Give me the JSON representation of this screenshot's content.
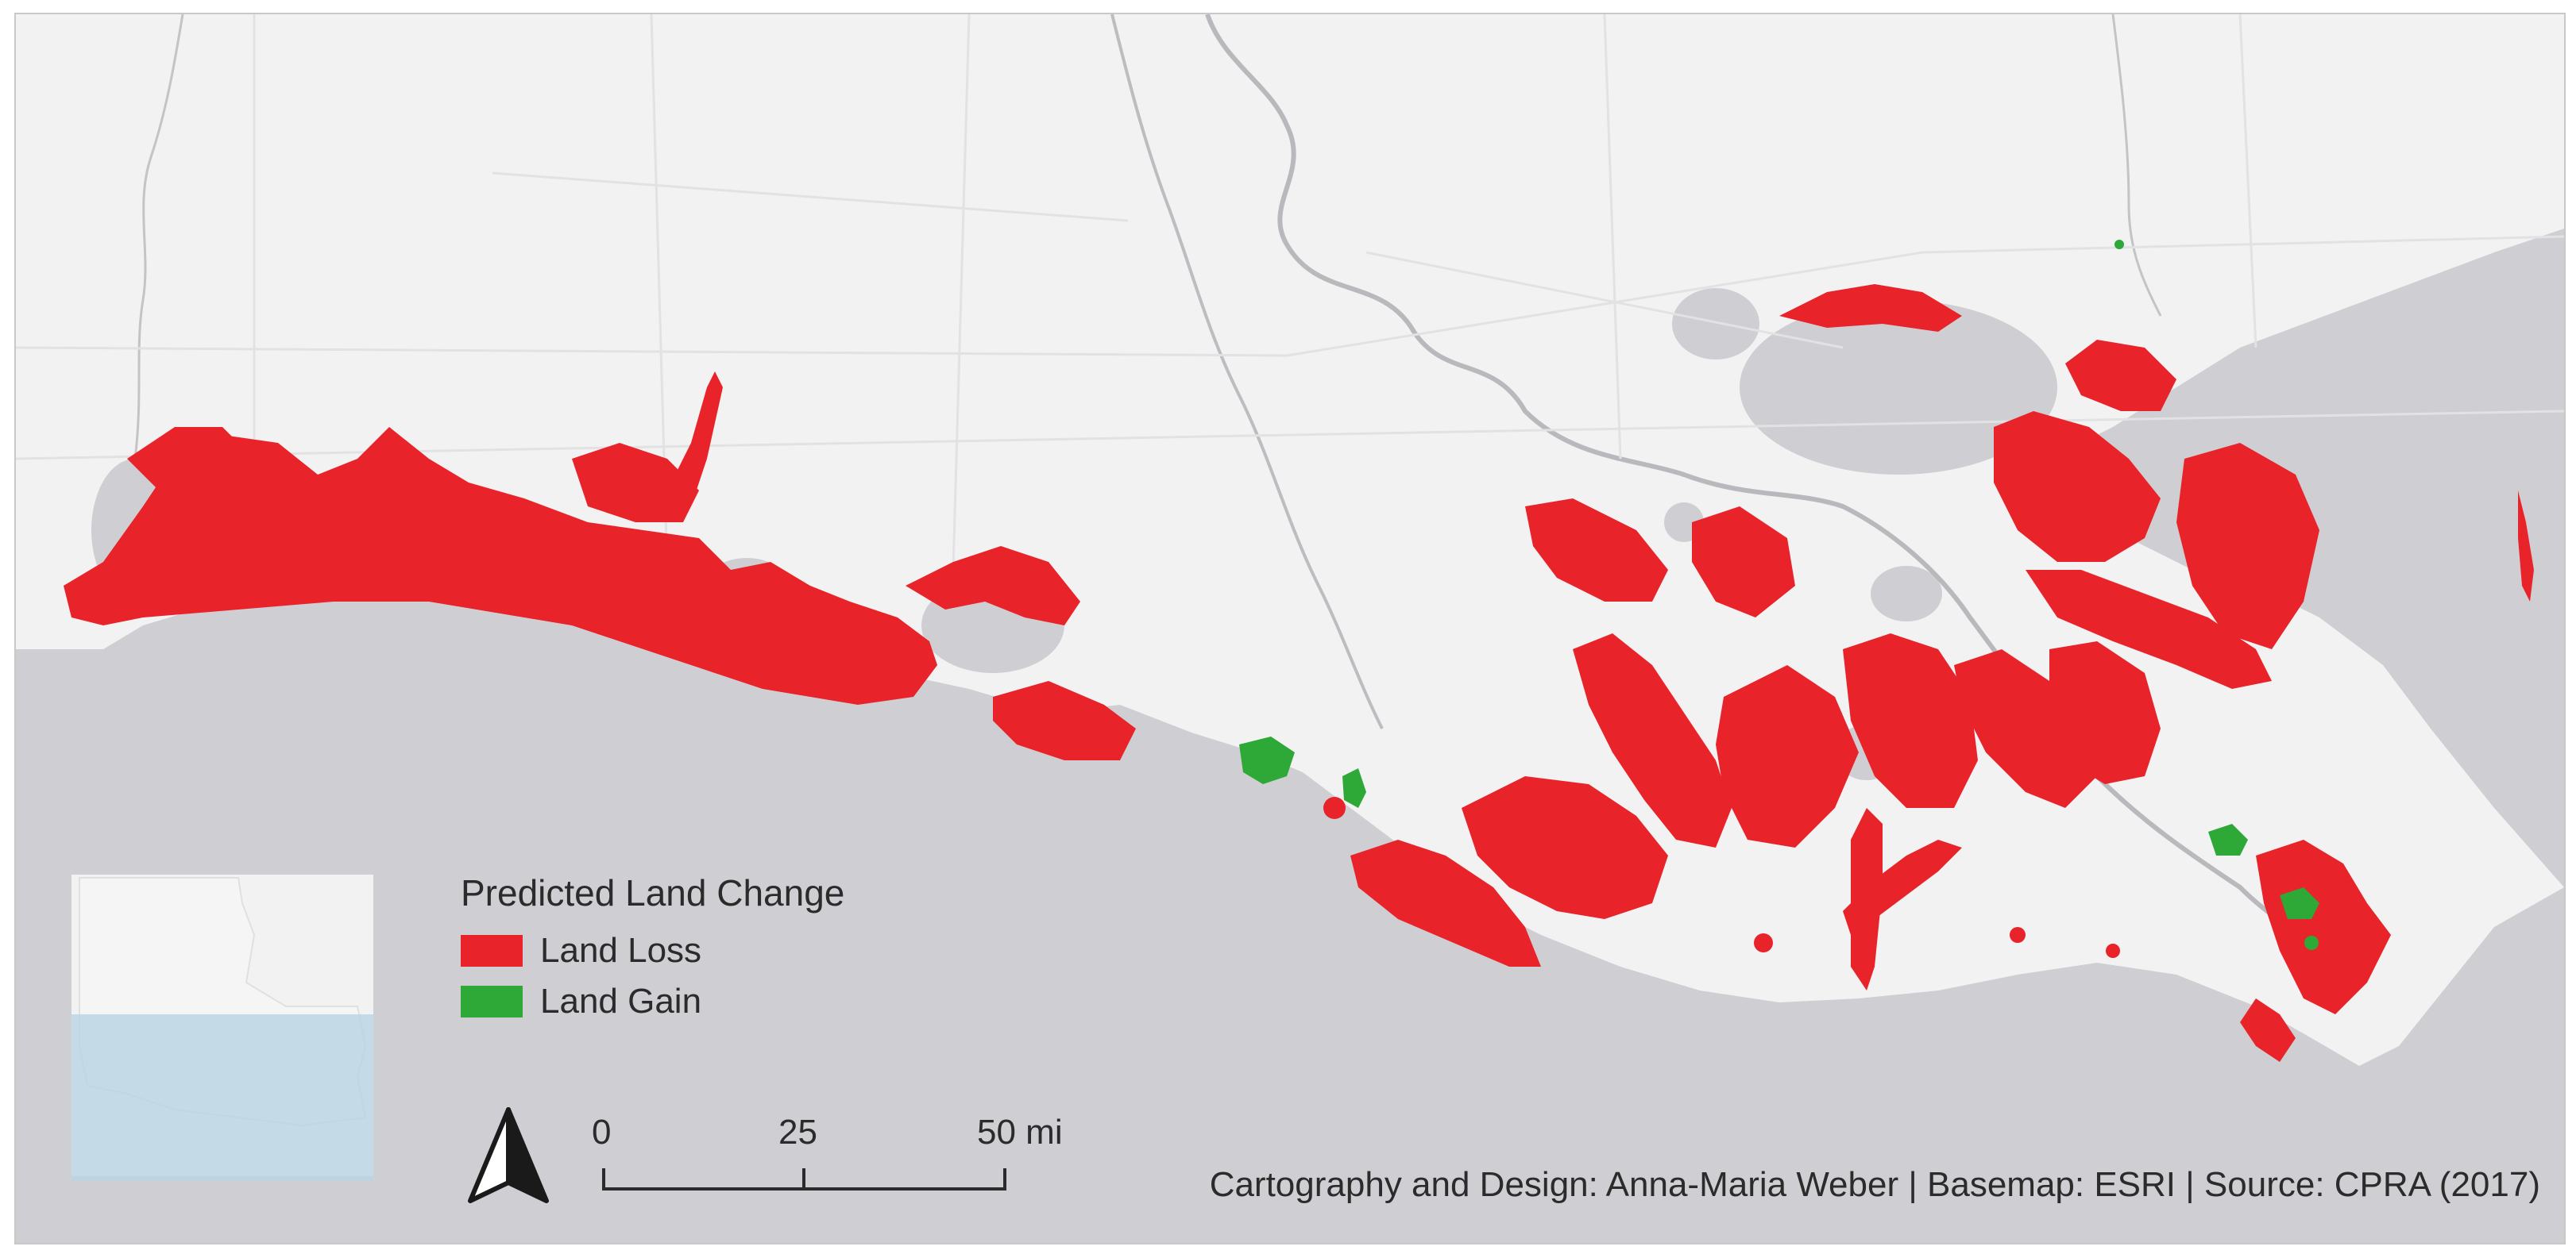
{
  "legend": {
    "title": "Predicted Land Change",
    "items": [
      {
        "label": "Land Loss",
        "color": "#e8232a"
      },
      {
        "label": "Land Gain",
        "color": "#2ea836"
      }
    ]
  },
  "scale_bar": {
    "ticks": [
      "0",
      "25",
      "50 mi"
    ]
  },
  "credits": "Cartography and Design: Anna-Maria Weber | Basemap: ESRI | Source: CPRA (2017)",
  "colors": {
    "land": "#f2f2f2",
    "water": "#cfcfd3",
    "roads": "#e2e2e4",
    "rivers": "#b9b9bd",
    "inset_state": "#f5f5f5",
    "inset_extent": "#b9d3e3"
  },
  "icons": {
    "north_arrow": "north-arrow-icon"
  }
}
